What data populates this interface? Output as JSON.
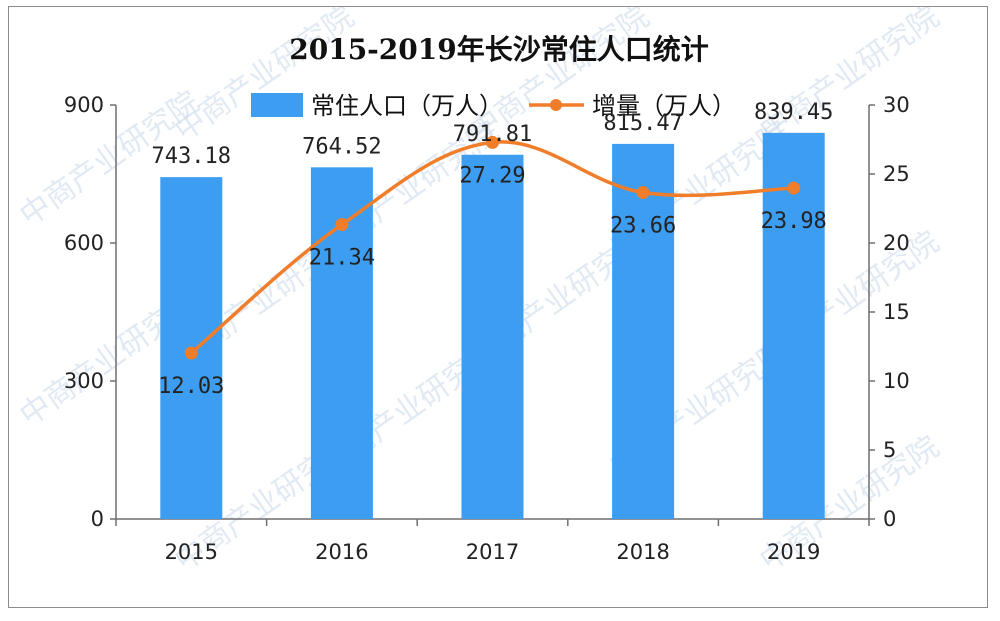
{
  "chart_data": {
    "type": "bar+line",
    "title": "2015-2019年长沙常住人口统计",
    "categories": [
      "2015",
      "2016",
      "2017",
      "2018",
      "2019"
    ],
    "series": [
      {
        "name": "常住人口（万人）",
        "type": "bar",
        "axis": "left",
        "color": "#3d9df0",
        "values": [
          743.18,
          764.52,
          791.81,
          815.47,
          839.45
        ],
        "labels": [
          "743.18",
          "764.52",
          "791.81",
          "815.47",
          "839.45"
        ]
      },
      {
        "name": "增量（万人）",
        "type": "line",
        "axis": "right",
        "color": "#f07d2a",
        "values": [
          12.03,
          21.34,
          27.29,
          23.66,
          23.98
        ],
        "labels": [
          "12.03",
          "21.34",
          "27.29",
          "23.66",
          "23.98"
        ]
      }
    ],
    "y_left": {
      "min": 0,
      "max": 900,
      "ticks": [
        "0",
        "300",
        "600",
        "900"
      ]
    },
    "y_right": {
      "min": 0,
      "max": 30,
      "ticks": [
        "0",
        "5",
        "10",
        "15",
        "20",
        "25",
        "30"
      ]
    },
    "legend_position": "top-center",
    "grid": false
  },
  "watermark_text": "中商产业研究院"
}
